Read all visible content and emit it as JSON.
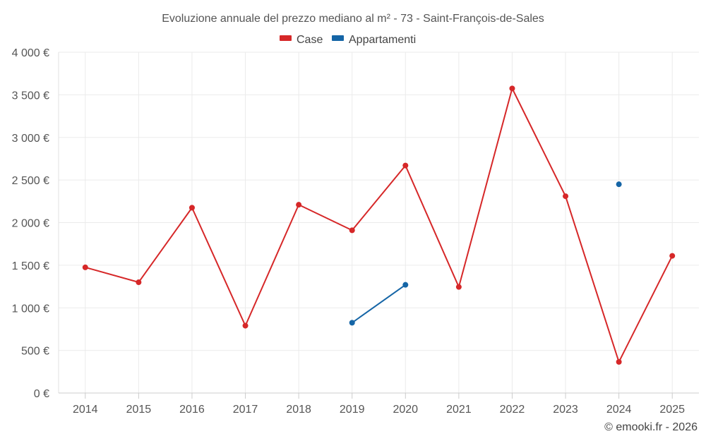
{
  "chart_data": {
    "type": "line",
    "title": "Evoluzione annuale del prezzo mediano al m² - 73 - Saint-François-de-Sales",
    "categories": [
      "2014",
      "2015",
      "2016",
      "2017",
      "2018",
      "2019",
      "2020",
      "2021",
      "2022",
      "2023",
      "2024",
      "2025"
    ],
    "y_ticks": [
      0,
      500,
      1000,
      1500,
      2000,
      2500,
      3000,
      3500,
      4000
    ],
    "y_tick_labels": [
      "0 €",
      "500 €",
      "1 000 €",
      "1 500 €",
      "2 000 €",
      "2 500 €",
      "3 000 €",
      "3 500 €",
      "4 000 €"
    ],
    "ylim": [
      0,
      4000
    ],
    "grid": true,
    "legend_position": "top-center",
    "series": [
      {
        "name": "Case",
        "color": "#d62728",
        "values": [
          1475,
          1300,
          2175,
          790,
          2210,
          1910,
          2670,
          1245,
          3575,
          2310,
          365,
          1610
        ]
      },
      {
        "name": "Appartamenti",
        "color": "#1565a6",
        "values": [
          null,
          null,
          null,
          null,
          null,
          825,
          1270,
          null,
          null,
          null,
          2450,
          null
        ]
      }
    ],
    "credit": "© emooki.fr - 2026"
  }
}
